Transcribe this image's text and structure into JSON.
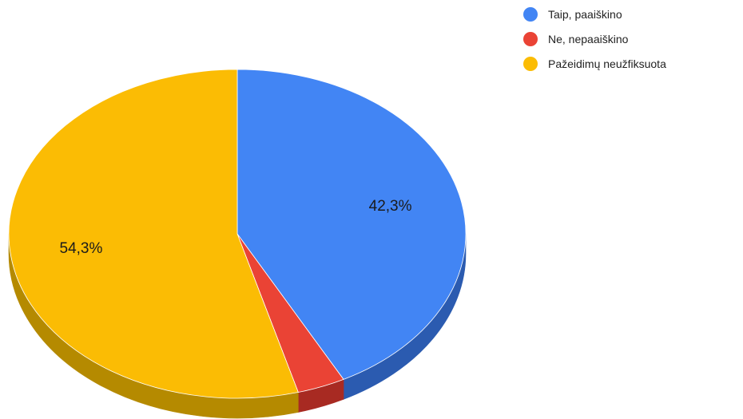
{
  "chart_data": {
    "type": "pie",
    "style": "3d",
    "start": "top",
    "direction": "clockwise",
    "legend_position": "top-right",
    "slices": [
      {
        "label": "Taip, paaiškino",
        "value": 42.3,
        "value_label": "42,3%",
        "color": "#4285f4",
        "side_color": "#2b5bb0"
      },
      {
        "label": "Ne, nepaaiškino",
        "value": 3.4,
        "value_label": "",
        "color": "#ea4335",
        "side_color": "#a82a22"
      },
      {
        "label": "Pažeidimų neužfiksuota",
        "value": 54.3,
        "value_label": "54,3%",
        "color": "#fbbc04",
        "side_color": "#b58a00"
      }
    ]
  }
}
